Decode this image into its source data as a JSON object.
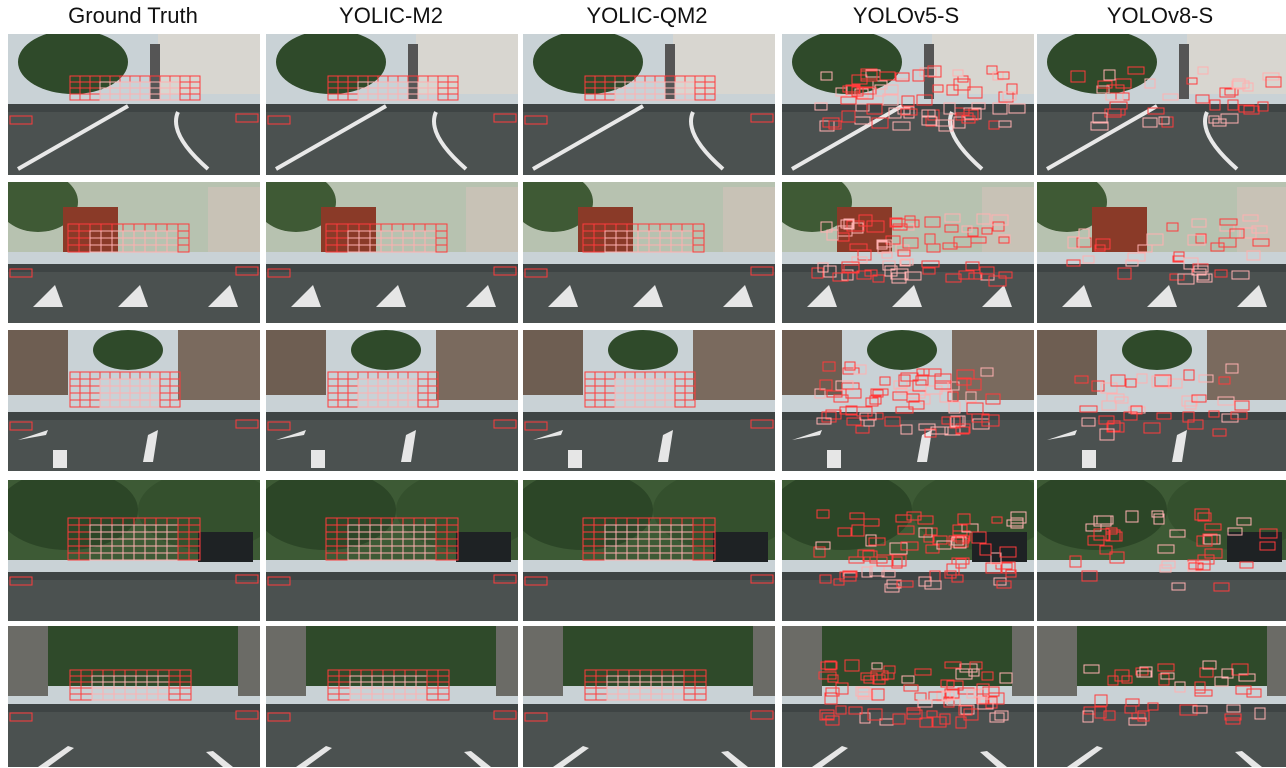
{
  "columns": [
    {
      "title": "Ground Truth",
      "method": "gt"
    },
    {
      "title": "YOLIC-M2",
      "method": "m2"
    },
    {
      "title": "YOLIC-QM2",
      "method": "qm2"
    },
    {
      "title": "YOLOv5-S",
      "method": "v5"
    },
    {
      "title": "YOLOv8-S",
      "method": "v8"
    }
  ],
  "rows": [
    {
      "scene": "street-with-building-and-curve"
    },
    {
      "scene": "truck-and-crosswalk"
    },
    {
      "scene": "brick-houses-with-arrows"
    },
    {
      "scene": "tree-lined-road-with-suv"
    },
    {
      "scene": "urban-road-with-cars"
    }
  ],
  "colors": {
    "box_primary": "#ff3b3b",
    "box_light": "#ffb0b0",
    "sky": "#c9d2d6",
    "road": "#3e4444",
    "foliage": "#2f4a2a",
    "building": "#7a6a5e"
  }
}
